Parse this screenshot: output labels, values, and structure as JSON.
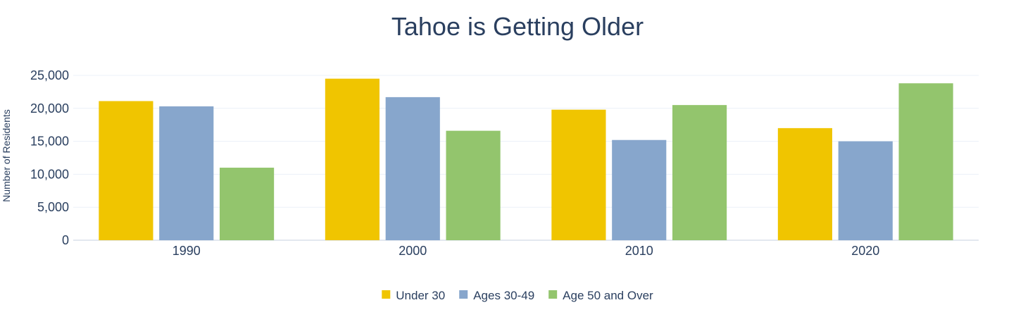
{
  "chart_data": {
    "type": "bar",
    "title": "Tahoe is Getting Older",
    "xlabel": "",
    "ylabel": "Number of Residents",
    "categories": [
      "1990",
      "2000",
      "2010",
      "2020"
    ],
    "series": [
      {
        "name": "Under 30",
        "color": "#f0c500",
        "values": [
          21100,
          24500,
          19800,
          17000
        ]
      },
      {
        "name": "Ages 30-49",
        "color": "#87a6cc",
        "values": [
          20300,
          21700,
          15200,
          15000
        ]
      },
      {
        "name": "Age 50 and Over",
        "color": "#93c56d",
        "values": [
          11000,
          16600,
          20500,
          23800
        ]
      }
    ],
    "ylim": [
      0,
      25000
    ],
    "yticks": [
      0,
      5000,
      10000,
      15000,
      20000,
      25000
    ],
    "ytick_labels": [
      "0",
      "5,000",
      "10,000",
      "15,000",
      "20,000",
      "25,000"
    ],
    "grid": true,
    "legend_position": "bottom-center"
  }
}
